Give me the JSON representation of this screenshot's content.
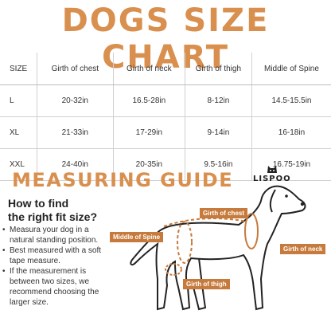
{
  "title": "DOGS SIZE CHART",
  "table": {
    "headers": [
      "SIZE",
      "Girth of chest",
      "Girth of neck",
      "Girth of thigh",
      "Middle of Spine"
    ],
    "rows": [
      [
        "L",
        "20-32in",
        "16.5-28in",
        "8-12in",
        "14.5-15.5in"
      ],
      [
        "XL",
        "21-33in",
        "17-29in",
        "9-14in",
        "16-18in"
      ],
      [
        "XXL",
        "24-40in",
        "20-35in",
        "9.5-16in",
        "16.75-19in"
      ]
    ]
  },
  "guide": {
    "title": "MEASURING GUIDE",
    "heading_line1": "How to find",
    "heading_line2": "the right fit size?",
    "bullets": [
      "Measura your dog in a natural standing position.",
      "Best measured with a soft tape measure.",
      "If the measurement is between two sizes, we recommend choosing the larger size."
    ]
  },
  "brand": "LISPOO",
  "tags": {
    "chest": "Girth of chest",
    "spine": "Middle of Spine",
    "neck": "Girth of neck",
    "thigh": "Girth of thigh"
  },
  "colors": {
    "accent": "#d98f4e",
    "tag": "#c67a3c"
  }
}
